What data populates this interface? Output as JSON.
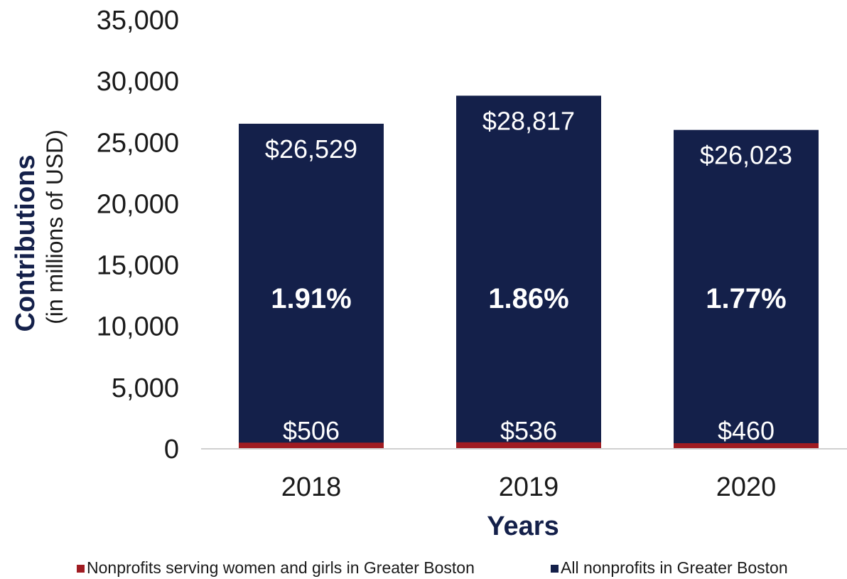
{
  "chart_data": {
    "type": "bar",
    "stacked": true,
    "categories": [
      "2018",
      "2019",
      "2020"
    ],
    "series": [
      {
        "name": "Nonprofits serving women and girls in Greater Boston",
        "color": "#a01c22",
        "values": [
          506,
          536,
          460
        ],
        "value_labels": [
          "$506",
          "$536",
          "$460"
        ]
      },
      {
        "name": "All nonprofits in Greater Boston",
        "color": "#14204a",
        "values": [
          26529,
          28817,
          26023
        ],
        "value_labels": [
          "$26,529",
          "$28,817",
          "$26,023"
        ]
      }
    ],
    "share_labels": [
      "1.91%",
      "1.86%",
      "1.77%"
    ],
    "xlabel": "Years",
    "ylabel": "Contributions",
    "ylabel_sub": "(in millions of USD)",
    "ylim": [
      0,
      35000
    ],
    "yticks": [
      0,
      5000,
      10000,
      15000,
      20000,
      25000,
      30000,
      35000
    ],
    "ytick_labels": [
      "0",
      "5,000",
      "10,000",
      "15,000",
      "20,000",
      "25,000",
      "30,000",
      "35,000"
    ],
    "grid": false,
    "legend_position": "bottom"
  }
}
